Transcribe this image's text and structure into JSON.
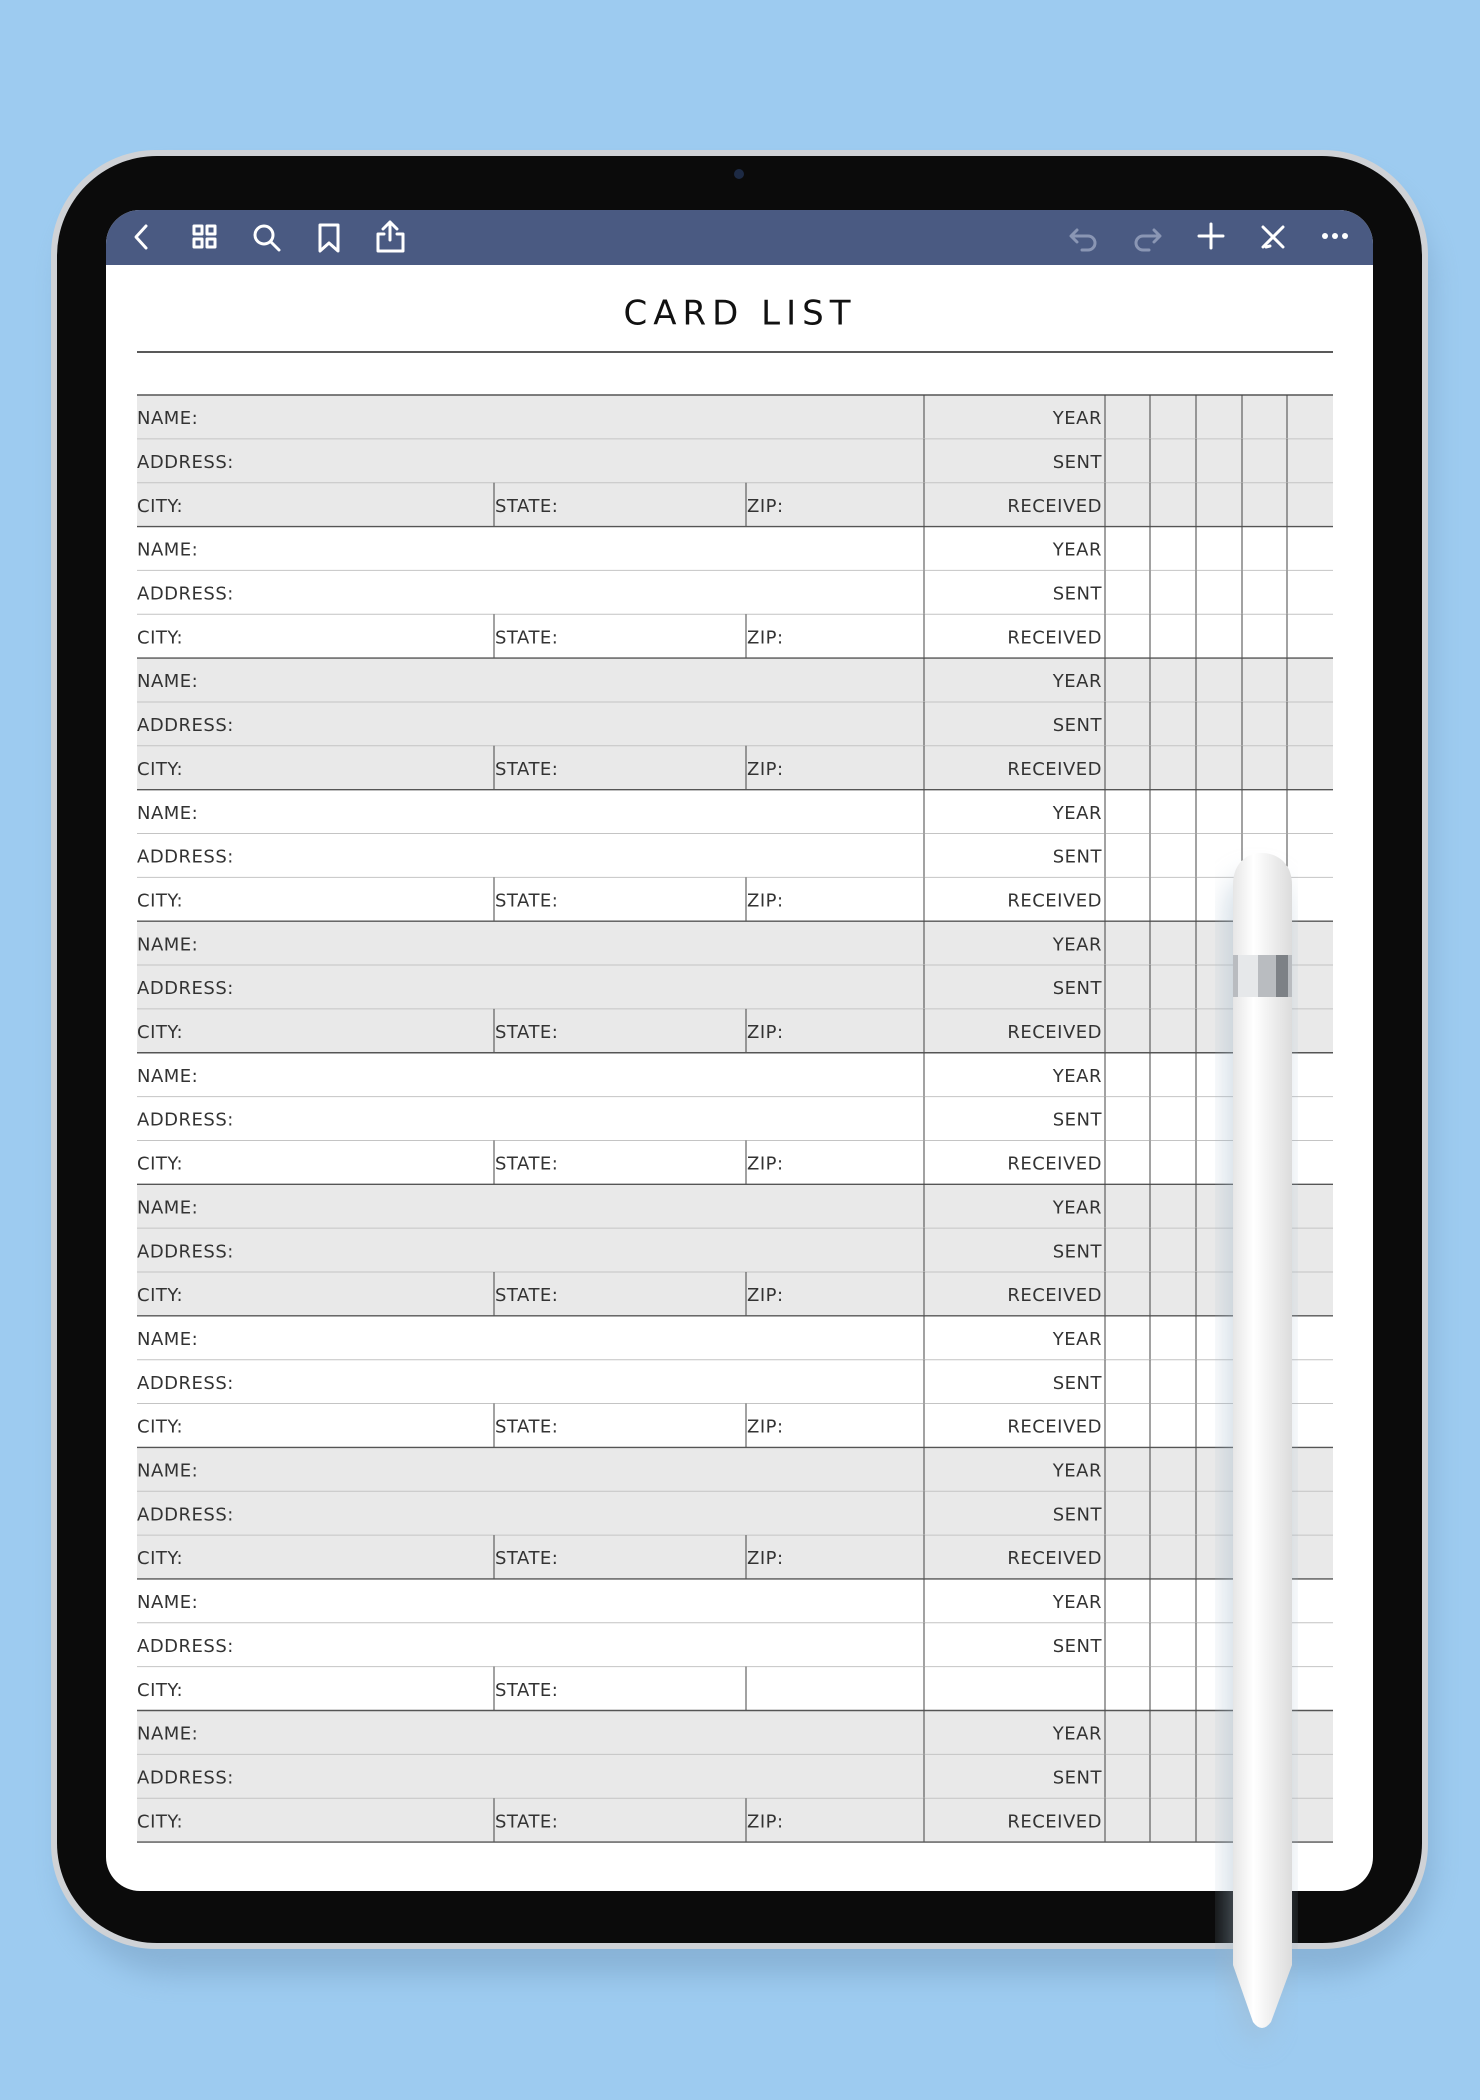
{
  "title": "CARD LIST",
  "blocks": [
    {
      "name": "NAME:",
      "address": "ADDRESS:",
      "city": "CITY:",
      "state": "STATE:",
      "zip": "ZIP:",
      "year": "YEAR",
      "sent": "SENT",
      "received": "RECEIVED"
    },
    {
      "name": "NAME:",
      "address": "ADDRESS:",
      "city": "CITY:",
      "state": "STATE:",
      "zip": "ZIP:",
      "year": "YEAR",
      "sent": "SENT",
      "received": "RECEIVED"
    },
    {
      "name": "NAME:",
      "address": "ADDRESS:",
      "city": "CITY:",
      "state": "STATE:",
      "zip": "ZIP:",
      "year": "YEAR",
      "sent": "SENT",
      "received": "RECEIVED"
    },
    {
      "name": "NAME:",
      "address": "ADDRESS:",
      "city": "CITY:",
      "state": "STATE:",
      "zip": "ZIP:",
      "year": "YEAR",
      "sent": "SENT",
      "received": "RECEIVED"
    },
    {
      "name": "NAME:",
      "address": "ADDRESS:",
      "city": "CITY:",
      "state": "STATE:",
      "zip": "ZIP:",
      "year": "YEAR",
      "sent": "SENT",
      "received": "RECEIVED"
    },
    {
      "name": "NAME:",
      "address": "ADDRESS:",
      "city": "CITY:",
      "state": "STATE:",
      "zip": "ZIP:",
      "year": "YEAR",
      "sent": "SENT",
      "received": "RECEIVED"
    },
    {
      "name": "NAME:",
      "address": "ADDRESS:",
      "city": "CITY:",
      "state": "STATE:",
      "zip": "ZIP:",
      "year": "YEAR",
      "sent": "SENT",
      "received": "RECEIVED"
    },
    {
      "name": "NAME:",
      "address": "ADDRESS:",
      "city": "CITY:",
      "state": "STATE:",
      "zip": "ZIP:",
      "year": "YEAR",
      "sent": "SENT",
      "received": "RECEIVED"
    },
    {
      "name": "NAME:",
      "address": "ADDRESS:",
      "city": "CITY:",
      "state": "STATE:",
      "zip": "ZIP:",
      "year": "YEAR",
      "sent": "SENT",
      "received": "RECEIVED"
    },
    {
      "name": "NAME:",
      "address": "ADDRESS:",
      "city": "CITY:",
      "state": "STATE:",
      "year": "YEAR",
      "sent": "SENT"
    },
    {
      "name": "NAME:",
      "address": "ADDRESS:",
      "city": "CITY:",
      "state": "STATE:",
      "zip": "ZIP:",
      "year": "YEAR",
      "sent": "SENT",
      "received": "RECEIVED"
    }
  ]
}
